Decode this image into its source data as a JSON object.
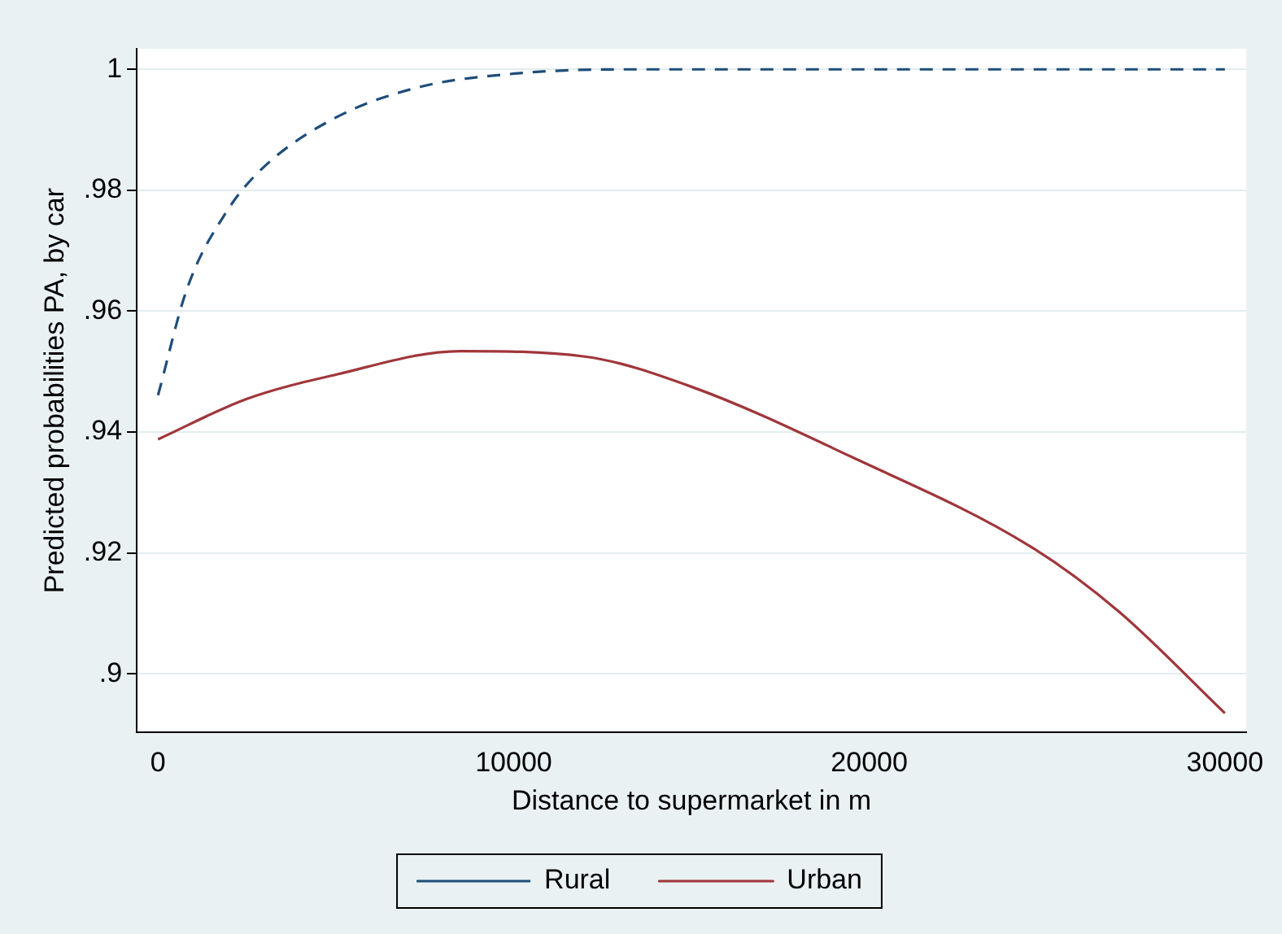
{
  "chart_data": {
    "type": "line",
    "xlabel": "Distance to supermarket in m",
    "ylabel": "Predicted probabilities PA, by car",
    "xlim": [
      -600,
      30600
    ],
    "ylim": [
      0.8903,
      1.0034
    ],
    "xticks": [
      0,
      10000,
      20000,
      30000
    ],
    "yticks": [
      {
        "value": 0.9,
        "label": ".9"
      },
      {
        "value": 0.92,
        "label": ".92"
      },
      {
        "value": 0.94,
        "label": ".94"
      },
      {
        "value": 0.96,
        "label": ".96"
      },
      {
        "value": 0.98,
        "label": ".98"
      },
      1
    ],
    "grid": "y",
    "legend": "bottom",
    "marker": "none",
    "series": [
      {
        "name": "Rural",
        "color": "#1f4e79",
        "line_style": "dashed",
        "x": [
          0,
          820,
          1920,
          2930,
          4990,
          7370,
          10030,
          13000,
          20000,
          30000
        ],
        "values": [
          0.9461,
          0.9638,
          0.9764,
          0.9836,
          0.992,
          0.9971,
          0.9993,
          1,
          1,
          1
        ]
      },
      {
        "name": "Urban",
        "color": "#a0363b",
        "line_style": "solid",
        "x": [
          0,
          2500,
          5000,
          8500,
          12000,
          15000,
          19500,
          24500,
          27000,
          30000
        ],
        "values": [
          0.9388,
          0.9455,
          0.9495,
          0.9534,
          0.9525,
          0.9475,
          0.9359,
          0.9212,
          0.9104,
          0.8935
        ]
      }
    ]
  }
}
